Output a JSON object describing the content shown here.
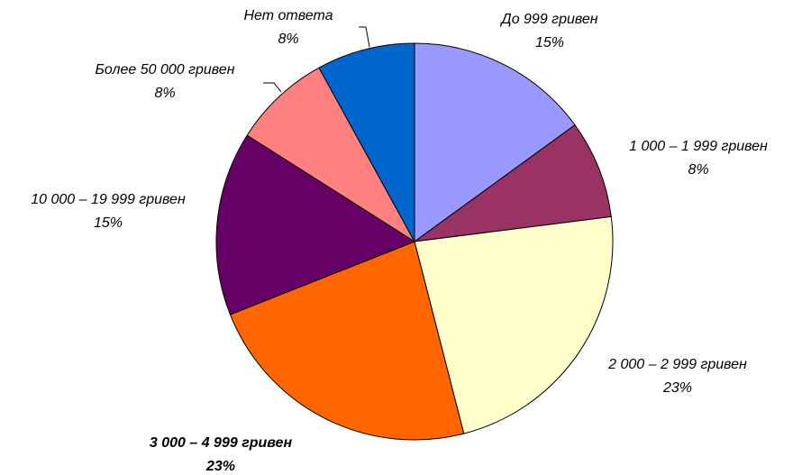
{
  "chart_data": {
    "type": "pie",
    "categories": [
      "До 999 гривен",
      "1 000 – 1 999 гривен",
      "2 000 – 2 999 гривен",
      "3 000 – 4 999 гривен",
      "10 000 – 19 999 гривен",
      "Более 50 000 гривен",
      "Нет ответа"
    ],
    "values": [
      15,
      8,
      23,
      23,
      15,
      8,
      8
    ],
    "value_labels": [
      "15%",
      "8%",
      "23%",
      "23%",
      "15%",
      "8%",
      "8%"
    ],
    "colors": [
      "#9999ff",
      "#993366",
      "#ffffcc",
      "#ff6600",
      "#660066",
      "#ff8080",
      "#0066cc"
    ]
  }
}
